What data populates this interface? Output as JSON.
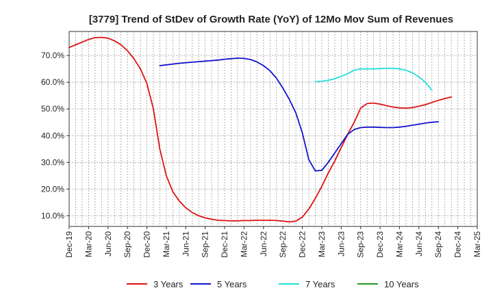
{
  "chart_data": {
    "type": "line",
    "title": "[3779]  Trend of StDev of Growth Rate (YoY) of 12Mo Mov Sum of Revenues",
    "xlabel": "",
    "ylabel": "",
    "x_ticks": [
      "Dec-19",
      "Mar-20",
      "Jun-20",
      "Sep-20",
      "Dec-20",
      "Mar-21",
      "Jun-21",
      "Sep-21",
      "Dec-21",
      "Mar-22",
      "Jun-22",
      "Sep-22",
      "Dec-22",
      "Mar-23",
      "Jun-23",
      "Sep-23",
      "Dec-23",
      "Mar-24",
      "Jun-24",
      "Sep-24",
      "Dec-24",
      "Mar-25"
    ],
    "y_ticks": [
      10,
      20,
      30,
      40,
      50,
      60,
      70
    ],
    "y_tick_labels": [
      "10.0%",
      "20.0%",
      "30.0%",
      "40.0%",
      "50.0%",
      "60.0%",
      "70.0%"
    ],
    "ylim": [
      6,
      79
    ],
    "grid": true,
    "legend_position": "bottom",
    "series": [
      {
        "name": "3 Years",
        "color": "#dd1111",
        "start_index": 0,
        "values": [
          73.0,
          74.0,
          75.0,
          76.0,
          76.7,
          76.8,
          76.5,
          75.5,
          74.0,
          71.8,
          68.8,
          65.0,
          59.5,
          50.0,
          35.0,
          25.0,
          19.0,
          15.5,
          13.0,
          11.2,
          10.0,
          9.2,
          8.7,
          8.3,
          8.2,
          8.1,
          8.1,
          8.2,
          8.2,
          8.3,
          8.3,
          8.3,
          8.2,
          8.0,
          7.7,
          8.0,
          9.5,
          12.5,
          16.5,
          21.0,
          26.0,
          30.5,
          35.5,
          40.5,
          45.0,
          50.3,
          52.0,
          52.2,
          51.8,
          51.2,
          50.7,
          50.4,
          50.3,
          50.5,
          51.0,
          51.6,
          52.4,
          53.2,
          53.9,
          54.5
        ]
      },
      {
        "name": "5 Years",
        "color": "#1111cc",
        "start_index": 14,
        "values": [
          66.2,
          66.5,
          66.8,
          67.1,
          67.3,
          67.5,
          67.7,
          67.9,
          68.1,
          68.3,
          68.6,
          68.8,
          69.0,
          68.9,
          68.5,
          67.6,
          66.2,
          64.3,
          61.5,
          57.8,
          53.5,
          48.5,
          41.0,
          31.0,
          26.8,
          27.0,
          30.0,
          33.5,
          37.0,
          40.5,
          42.3,
          43.0,
          43.2,
          43.2,
          43.1,
          43.0,
          43.0,
          43.2,
          43.5,
          43.9,
          44.3,
          44.7,
          45.0,
          45.2
        ]
      },
      {
        "name": "7 Years",
        "color": "#22dddd",
        "start_index": 38,
        "values": [
          60.2,
          60.4,
          60.7,
          61.3,
          62.2,
          63.2,
          64.5,
          65.0,
          65.0,
          65.0,
          65.1,
          65.2,
          65.2,
          65.0,
          64.5,
          63.5,
          62.0,
          60.0,
          57.0
        ]
      },
      {
        "name": "10 Years",
        "color": "#229922",
        "start_index": 0,
        "values": []
      }
    ]
  }
}
